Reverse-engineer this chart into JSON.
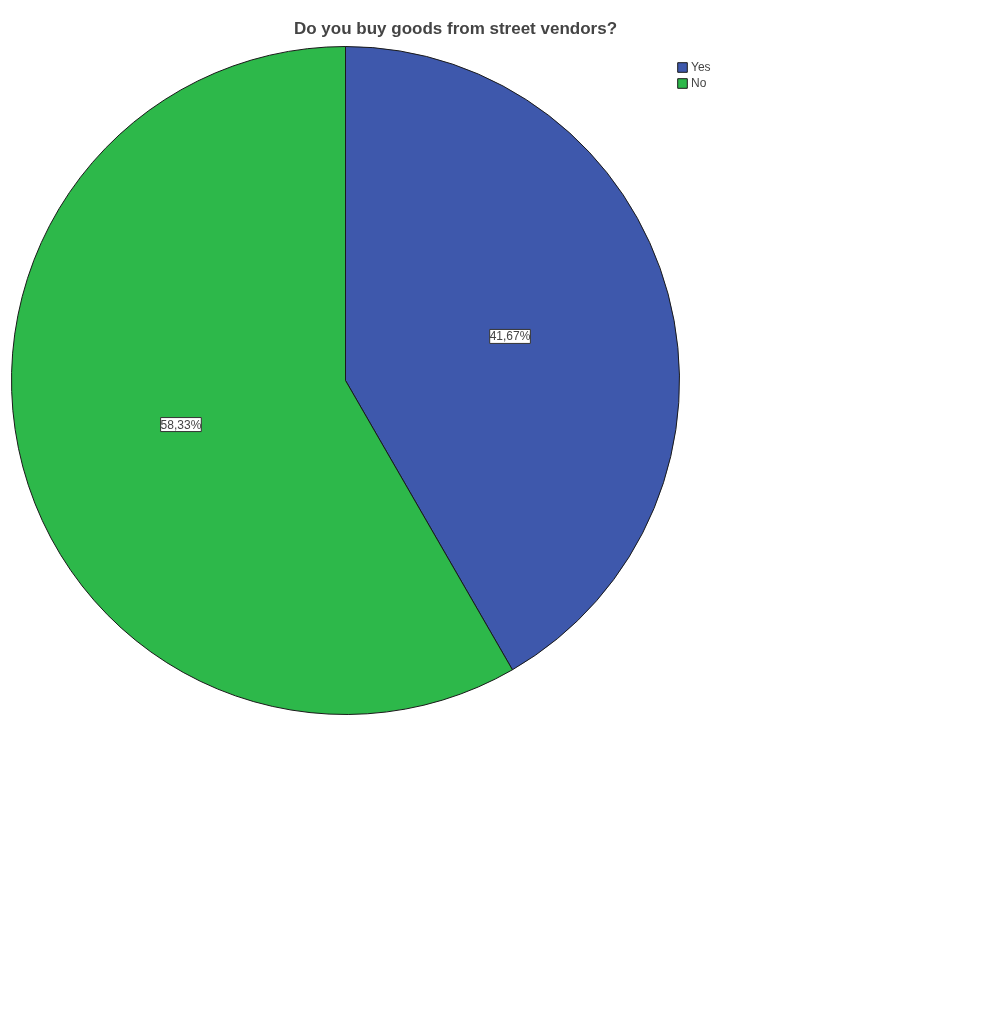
{
  "chart_data": {
    "type": "pie",
    "title": "Do you buy goods from street vendors?",
    "categories": [
      "Yes",
      "No"
    ],
    "values": [
      41.67,
      58.33
    ],
    "colors": [
      "#3e58ac",
      "#2db84a"
    ],
    "value_labels": [
      "41,67%",
      "58,33%"
    ],
    "legend": "top right"
  }
}
